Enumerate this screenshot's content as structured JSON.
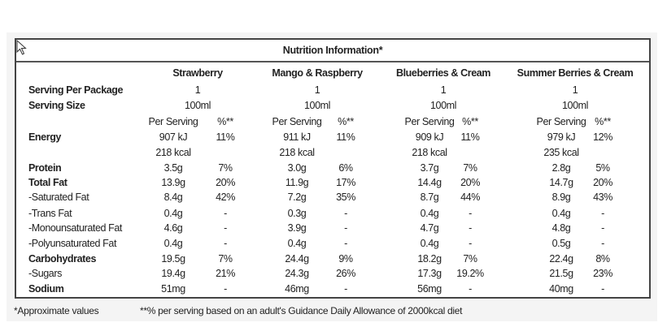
{
  "title": "Nutrition Information*",
  "products": [
    "Strawberry",
    "Mango & Raspberry",
    "Blueberries & Cream",
    "Summer Berries & Cream"
  ],
  "serving_per_package": {
    "label": "Serving Per Package",
    "values": [
      "1",
      "1",
      "1",
      "1"
    ]
  },
  "serving_size": {
    "label": "Serving Size",
    "values": [
      "100ml",
      "100ml",
      "100ml",
      "100ml"
    ]
  },
  "subheaders": {
    "per_serving": "Per Serving",
    "percent": "%**"
  },
  "rows": [
    {
      "label": "Energy",
      "bold": true,
      "values": [
        [
          "907 kJ",
          "11%"
        ],
        [
          "911 kJ",
          "11%"
        ],
        [
          "909 kJ",
          "11%"
        ],
        [
          "979 kJ",
          "12%"
        ]
      ]
    },
    {
      "label": "",
      "bold": false,
      "values": [
        [
          "218 kcal",
          ""
        ],
        [
          "218 kcal",
          ""
        ],
        [
          "218 kcal",
          ""
        ],
        [
          "235 kcal",
          ""
        ]
      ]
    },
    {
      "label": "Protein",
      "bold": true,
      "values": [
        [
          "3.5g",
          "7%"
        ],
        [
          "3.0g",
          "6%"
        ],
        [
          "3.7g",
          "7%"
        ],
        [
          "2.8g",
          "5%"
        ]
      ]
    },
    {
      "label": "Total Fat",
      "bold": true,
      "values": [
        [
          "13.9g",
          "20%"
        ],
        [
          "11.9g",
          "17%"
        ],
        [
          "14.4g",
          "20%"
        ],
        [
          "14.7g",
          "20%"
        ]
      ]
    },
    {
      "label": "-Saturated Fat",
      "bold": false,
      "values": [
        [
          "8.4g",
          "42%"
        ],
        [
          "7.2g",
          "35%"
        ],
        [
          "8.7g",
          "44%"
        ],
        [
          "8.9g",
          "43%"
        ]
      ]
    },
    {
      "label": "-Trans Fat",
      "bold": false,
      "values": [
        [
          "0.4g",
          "-"
        ],
        [
          "0.3g",
          "-"
        ],
        [
          "0.4g",
          "-"
        ],
        [
          "0.4g",
          "-"
        ]
      ]
    },
    {
      "label": "-Monounsaturated Fat",
      "bold": false,
      "values": [
        [
          "4.6g",
          "-"
        ],
        [
          "3.9g",
          "-"
        ],
        [
          "4.7g",
          "-"
        ],
        [
          "4.8g",
          "-"
        ]
      ]
    },
    {
      "label": "-Polyunsaturated Fat",
      "bold": false,
      "values": [
        [
          "0.4g",
          "-"
        ],
        [
          "0.4g",
          "-"
        ],
        [
          "0.4g",
          "-"
        ],
        [
          "0.5g",
          "-"
        ]
      ]
    },
    {
      "label": "Carbohydrates",
      "bold": true,
      "values": [
        [
          "19.5g",
          "7%"
        ],
        [
          "24.4g",
          "9%"
        ],
        [
          "18.2g",
          "7%"
        ],
        [
          "22.4g",
          "8%"
        ]
      ]
    },
    {
      "label": "-Sugars",
      "bold": false,
      "values": [
        [
          "19.4g",
          "21%"
        ],
        [
          "24.3g",
          "26%"
        ],
        [
          "17.3g",
          "19.2%"
        ],
        [
          "21.5g",
          "23%"
        ]
      ]
    },
    {
      "label": "Sodium",
      "bold": true,
      "values": [
        [
          "51mg",
          "-"
        ],
        [
          "46mg",
          "-"
        ],
        [
          "56mg",
          "-"
        ],
        [
          "40mg",
          "-"
        ]
      ]
    }
  ],
  "footnotes": {
    "approx": "*Approximate values",
    "gda": "**% per serving based on an adult's Guidance Daily Allowance of 2000kcal diet"
  }
}
